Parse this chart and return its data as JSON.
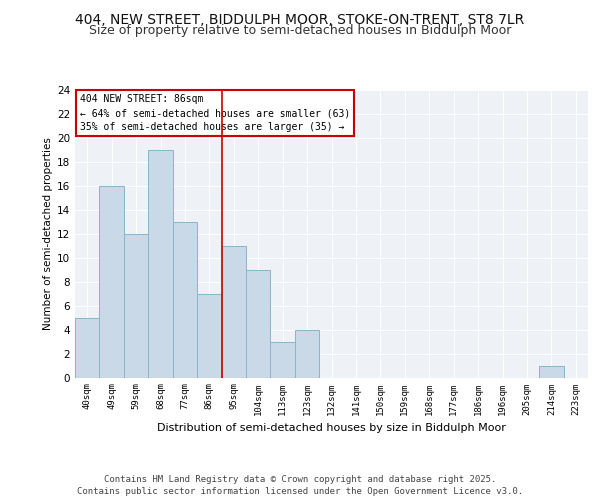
{
  "title1": "404, NEW STREET, BIDDULPH MOOR, STOKE-ON-TRENT, ST8 7LR",
  "title2": "Size of property relative to semi-detached houses in Biddulph Moor",
  "xlabel": "Distribution of semi-detached houses by size in Biddulph Moor",
  "ylabel": "Number of semi-detached properties",
  "categories": [
    "40sqm",
    "49sqm",
    "59sqm",
    "68sqm",
    "77sqm",
    "86sqm",
    "95sqm",
    "104sqm",
    "113sqm",
    "123sqm",
    "132sqm",
    "141sqm",
    "150sqm",
    "159sqm",
    "168sqm",
    "177sqm",
    "186sqm",
    "196sqm",
    "205sqm",
    "214sqm",
    "223sqm"
  ],
  "values": [
    5,
    16,
    12,
    19,
    13,
    7,
    11,
    9,
    3,
    4,
    0,
    0,
    0,
    0,
    0,
    0,
    0,
    0,
    0,
    1,
    0
  ],
  "bar_color": "#c9d9e8",
  "bar_edgecolor": "#8ab4cc",
  "annotation_title": "404 NEW STREET: 86sqm",
  "annotation_line1": "← 64% of semi-detached houses are smaller (63)",
  "annotation_line2": "35% of semi-detached houses are larger (35) →",
  "annotation_box_color": "#ffffff",
  "annotation_box_edgecolor": "#cc0000",
  "vline_color": "#cc0000",
  "vline_index": 5,
  "ylim": [
    0,
    24
  ],
  "yticks": [
    0,
    2,
    4,
    6,
    8,
    10,
    12,
    14,
    16,
    18,
    20,
    22,
    24
  ],
  "background_color": "#eef2f7",
  "grid_color": "#ffffff",
  "footer": "Contains HM Land Registry data © Crown copyright and database right 2025.\nContains public sector information licensed under the Open Government Licence v3.0.",
  "title_fontsize": 10,
  "subtitle_fontsize": 9,
  "footer_fontsize": 6.5
}
